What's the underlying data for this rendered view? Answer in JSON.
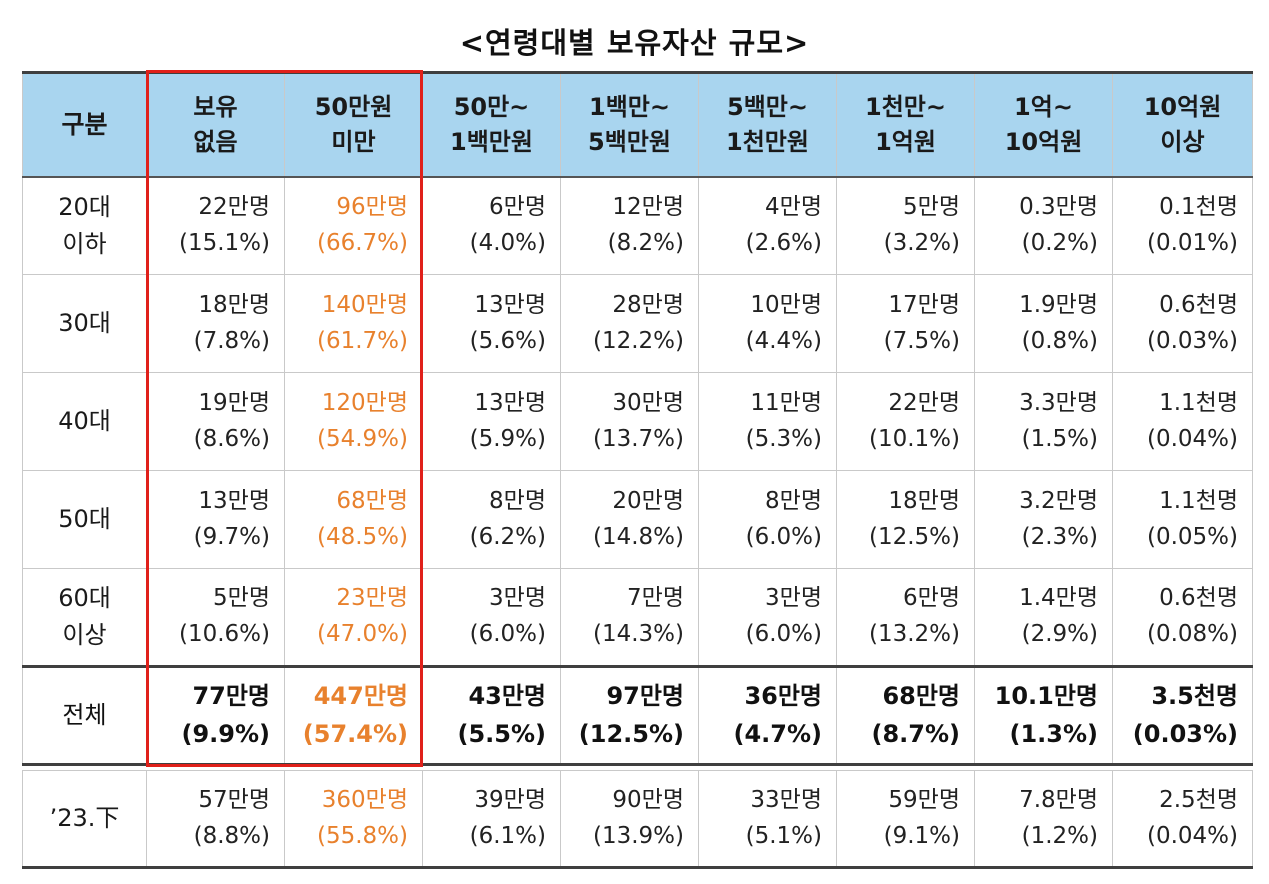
{
  "title": "<연령대별 보유자산 규모>",
  "highlight_color": "#e0201a",
  "accent_color": "#e8812d",
  "header_bg": "#a9d5ef",
  "columns": [
    {
      "line1": "구분",
      "line2": ""
    },
    {
      "line1": "보유",
      "line2": "없음"
    },
    {
      "line1": "50만원",
      "line2": "미만"
    },
    {
      "line1": "50만~",
      "line2": "1백만원"
    },
    {
      "line1": "1백만~",
      "line2": "5백만원"
    },
    {
      "line1": "5백만~",
      "line2": "1천만원"
    },
    {
      "line1": "1천만~",
      "line2": "1억원"
    },
    {
      "line1": "1억~",
      "line2": "10억원"
    },
    {
      "line1": "10억원",
      "line2": "이상"
    }
  ],
  "rows": [
    {
      "label1": "20대",
      "label2": "이하",
      "cells": [
        {
          "count": "22만명",
          "pct": "(15.1%)"
        },
        {
          "count": "96만명",
          "pct": "(66.7%)"
        },
        {
          "count": "6만명",
          "pct": "(4.0%)"
        },
        {
          "count": "12만명",
          "pct": "(8.2%)"
        },
        {
          "count": "4만명",
          "pct": "(2.6%)"
        },
        {
          "count": "5만명",
          "pct": "(3.2%)"
        },
        {
          "count": "0.3만명",
          "pct": "(0.2%)"
        },
        {
          "count": "0.1천명",
          "pct": "(0.01%)"
        }
      ]
    },
    {
      "label1": "30대",
      "label2": "",
      "cells": [
        {
          "count": "18만명",
          "pct": "(7.8%)"
        },
        {
          "count": "140만명",
          "pct": "(61.7%)"
        },
        {
          "count": "13만명",
          "pct": "(5.6%)"
        },
        {
          "count": "28만명",
          "pct": "(12.2%)"
        },
        {
          "count": "10만명",
          "pct": "(4.4%)"
        },
        {
          "count": "17만명",
          "pct": "(7.5%)"
        },
        {
          "count": "1.9만명",
          "pct": "(0.8%)"
        },
        {
          "count": "0.6천명",
          "pct": "(0.03%)"
        }
      ]
    },
    {
      "label1": "40대",
      "label2": "",
      "cells": [
        {
          "count": "19만명",
          "pct": "(8.6%)"
        },
        {
          "count": "120만명",
          "pct": "(54.9%)"
        },
        {
          "count": "13만명",
          "pct": "(5.9%)"
        },
        {
          "count": "30만명",
          "pct": "(13.7%)"
        },
        {
          "count": "11만명",
          "pct": "(5.3%)"
        },
        {
          "count": "22만명",
          "pct": "(10.1%)"
        },
        {
          "count": "3.3만명",
          "pct": "(1.5%)"
        },
        {
          "count": "1.1천명",
          "pct": "(0.04%)"
        }
      ]
    },
    {
      "label1": "50대",
      "label2": "",
      "cells": [
        {
          "count": "13만명",
          "pct": "(9.7%)"
        },
        {
          "count": "68만명",
          "pct": "(48.5%)"
        },
        {
          "count": "8만명",
          "pct": "(6.2%)"
        },
        {
          "count": "20만명",
          "pct": "(14.8%)"
        },
        {
          "count": "8만명",
          "pct": "(6.0%)"
        },
        {
          "count": "18만명",
          "pct": "(12.5%)"
        },
        {
          "count": "3.2만명",
          "pct": "(2.3%)"
        },
        {
          "count": "1.1천명",
          "pct": "(0.05%)"
        }
      ]
    },
    {
      "label1": "60대",
      "label2": "이상",
      "cells": [
        {
          "count": "5만명",
          "pct": "(10.6%)"
        },
        {
          "count": "23만명",
          "pct": "(47.0%)"
        },
        {
          "count": "3만명",
          "pct": "(6.0%)"
        },
        {
          "count": "7만명",
          "pct": "(14.3%)"
        },
        {
          "count": "3만명",
          "pct": "(6.0%)"
        },
        {
          "count": "6만명",
          "pct": "(13.2%)"
        },
        {
          "count": "1.4만명",
          "pct": "(2.9%)"
        },
        {
          "count": "0.6천명",
          "pct": "(0.08%)"
        }
      ]
    }
  ],
  "total": {
    "label": "전체",
    "cells": [
      {
        "count": "77만명",
        "pct": "(9.9%)"
      },
      {
        "count": "447만명",
        "pct": "(57.4%)"
      },
      {
        "count": "43만명",
        "pct": "(5.5%)"
      },
      {
        "count": "97만명",
        "pct": "(12.5%)"
      },
      {
        "count": "36만명",
        "pct": "(4.7%)"
      },
      {
        "count": "68만명",
        "pct": "(8.7%)"
      },
      {
        "count": "10.1만명",
        "pct": "(1.3%)"
      },
      {
        "count": "3.5천명",
        "pct": "(0.03%)"
      }
    ]
  },
  "previous": {
    "label": "’23.下",
    "cells": [
      {
        "count": "57만명",
        "pct": "(8.8%)"
      },
      {
        "count": "360만명",
        "pct": "(55.8%)"
      },
      {
        "count": "39만명",
        "pct": "(6.1%)"
      },
      {
        "count": "90만명",
        "pct": "(13.9%)"
      },
      {
        "count": "33만명",
        "pct": "(5.1%)"
      },
      {
        "count": "59만명",
        "pct": "(9.1%)"
      },
      {
        "count": "7.8만명",
        "pct": "(1.2%)"
      },
      {
        "count": "2.5천명",
        "pct": "(0.04%)"
      }
    ]
  }
}
